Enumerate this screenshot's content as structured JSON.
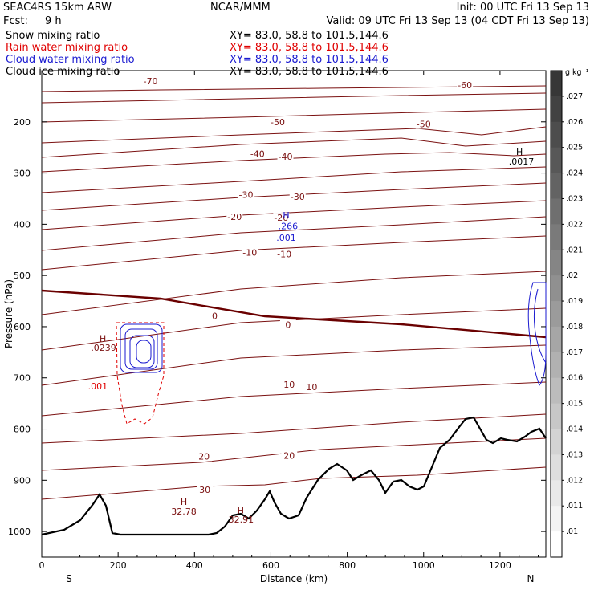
{
  "header": {
    "model": "SEAC4RS 15km ARW",
    "org": "NCAR/MMM",
    "init": "Init: 00 UTC Fri 13 Sep 13",
    "fcst_label": "Fcst:",
    "fcst_value": "9 h",
    "valid": "Valid: 09 UTC Fri 13 Sep 13 (04 CDT Fri 13 Sep 13)",
    "fields": [
      {
        "name": "Snow mixing ratio",
        "xy": "XY=  83.0, 58.8 to 101.5,144.6",
        "color": "#000000"
      },
      {
        "name": "Rain water mixing ratio",
        "xy": "XY=  83.0, 58.8 to 101.5,144.6",
        "color": "#e00000"
      },
      {
        "name": "Cloud water mixing ratio",
        "xy": "XY=  83.0, 58.8 to 101.5,144.6",
        "color": "#1a1ad0"
      },
      {
        "name": "Cloud ice mixing ratio",
        "xy": "XY=  83.0, 58.8 to 101.5,144.6",
        "color": "#000000"
      }
    ]
  },
  "colors": {
    "temperature": "#7a1010",
    "freezing": "#6a0000",
    "rain": "#e00000",
    "cloud_water": "#1a1ad0",
    "terrain": "#000000"
  },
  "chart_data": {
    "type": "line",
    "title": "SEAC4RS 15km ARW",
    "xlabel": "Distance (km)",
    "ylabel": "Pressure (hPa)",
    "xlim": [
      0,
      1320
    ],
    "ylim": [
      1050,
      100
    ],
    "x_ticks": [
      0,
      200,
      400,
      600,
      800,
      1000,
      1200
    ],
    "y_ticks": [
      200,
      300,
      400,
      500,
      600,
      700,
      800,
      900,
      1000
    ],
    "x_end_labels": [
      "S",
      "N"
    ],
    "temperature_labels": [
      {
        "text": "-70",
        "x": 285,
        "p": 120
      },
      {
        "text": "-60",
        "x": 1108,
        "p": 128
      },
      {
        "text": "-50",
        "x": 618,
        "p": 200
      },
      {
        "text": "-50",
        "x": 1000,
        "p": 204
      },
      {
        "text": "-40",
        "x": 565,
        "p": 262
      },
      {
        "text": "-40",
        "x": 638,
        "p": 268
      },
      {
        "text": "-30",
        "x": 535,
        "p": 342
      },
      {
        "text": "-30",
        "x": 670,
        "p": 346
      },
      {
        "text": "-20",
        "x": 505,
        "p": 385
      },
      {
        "text": "-20",
        "x": 627,
        "p": 387
      },
      {
        "text": "-10",
        "x": 545,
        "p": 455
      },
      {
        "text": "-10",
        "x": 635,
        "p": 458
      },
      {
        "text": "0",
        "x": 453,
        "p": 579
      },
      {
        "text": "0",
        "x": 645,
        "p": 596
      },
      {
        "text": "10",
        "x": 648,
        "p": 713
      },
      {
        "text": "10",
        "x": 707,
        "p": 718
      },
      {
        "text": "20",
        "x": 425,
        "p": 853
      },
      {
        "text": "20",
        "x": 648,
        "p": 852
      },
      {
        "text": "30",
        "x": 427,
        "p": 918
      }
    ],
    "annotations": [
      {
        "text": "H",
        "x": 1251,
        "p": 258,
        "color": "#000000"
      },
      {
        "text": ".0017",
        "x": 1256,
        "p": 277,
        "color": "#000000"
      },
      {
        "text": "H",
        "x": 640,
        "p": 382,
        "color": "#1a1ad0"
      },
      {
        "text": ".266",
        "x": 645,
        "p": 403,
        "color": "#1a1ad0"
      },
      {
        "text": ".001",
        "x": 640,
        "p": 426,
        "color": "#1a1ad0"
      },
      {
        "text": "H",
        "x": 160,
        "p": 623,
        "color": "#7a1010"
      },
      {
        "text": ".0239",
        "x": 162,
        "p": 641,
        "color": "#7a1010"
      },
      {
        "text": ".001",
        "x": 147,
        "p": 716,
        "color": "#e00000"
      },
      {
        "text": "H",
        "x": 372,
        "p": 942,
        "color": "#7a1010"
      },
      {
        "text": "32.78",
        "x": 372,
        "p": 961,
        "color": "#7a1010"
      },
      {
        "text": "H",
        "x": 521,
        "p": 958,
        "color": "#7a1010"
      },
      {
        "text": "32.91",
        "x": 522,
        "p": 976,
        "color": "#7a1010"
      }
    ],
    "colorbar": {
      "unit": "g kg⁻¹",
      "levels": [
        ".027",
        ".026",
        ".025",
        ".024",
        ".023",
        ".022",
        ".021",
        ".02",
        ".019",
        ".018",
        ".017",
        ".016",
        ".015",
        ".014",
        ".013",
        ".012",
        ".011",
        ".01"
      ]
    }
  }
}
